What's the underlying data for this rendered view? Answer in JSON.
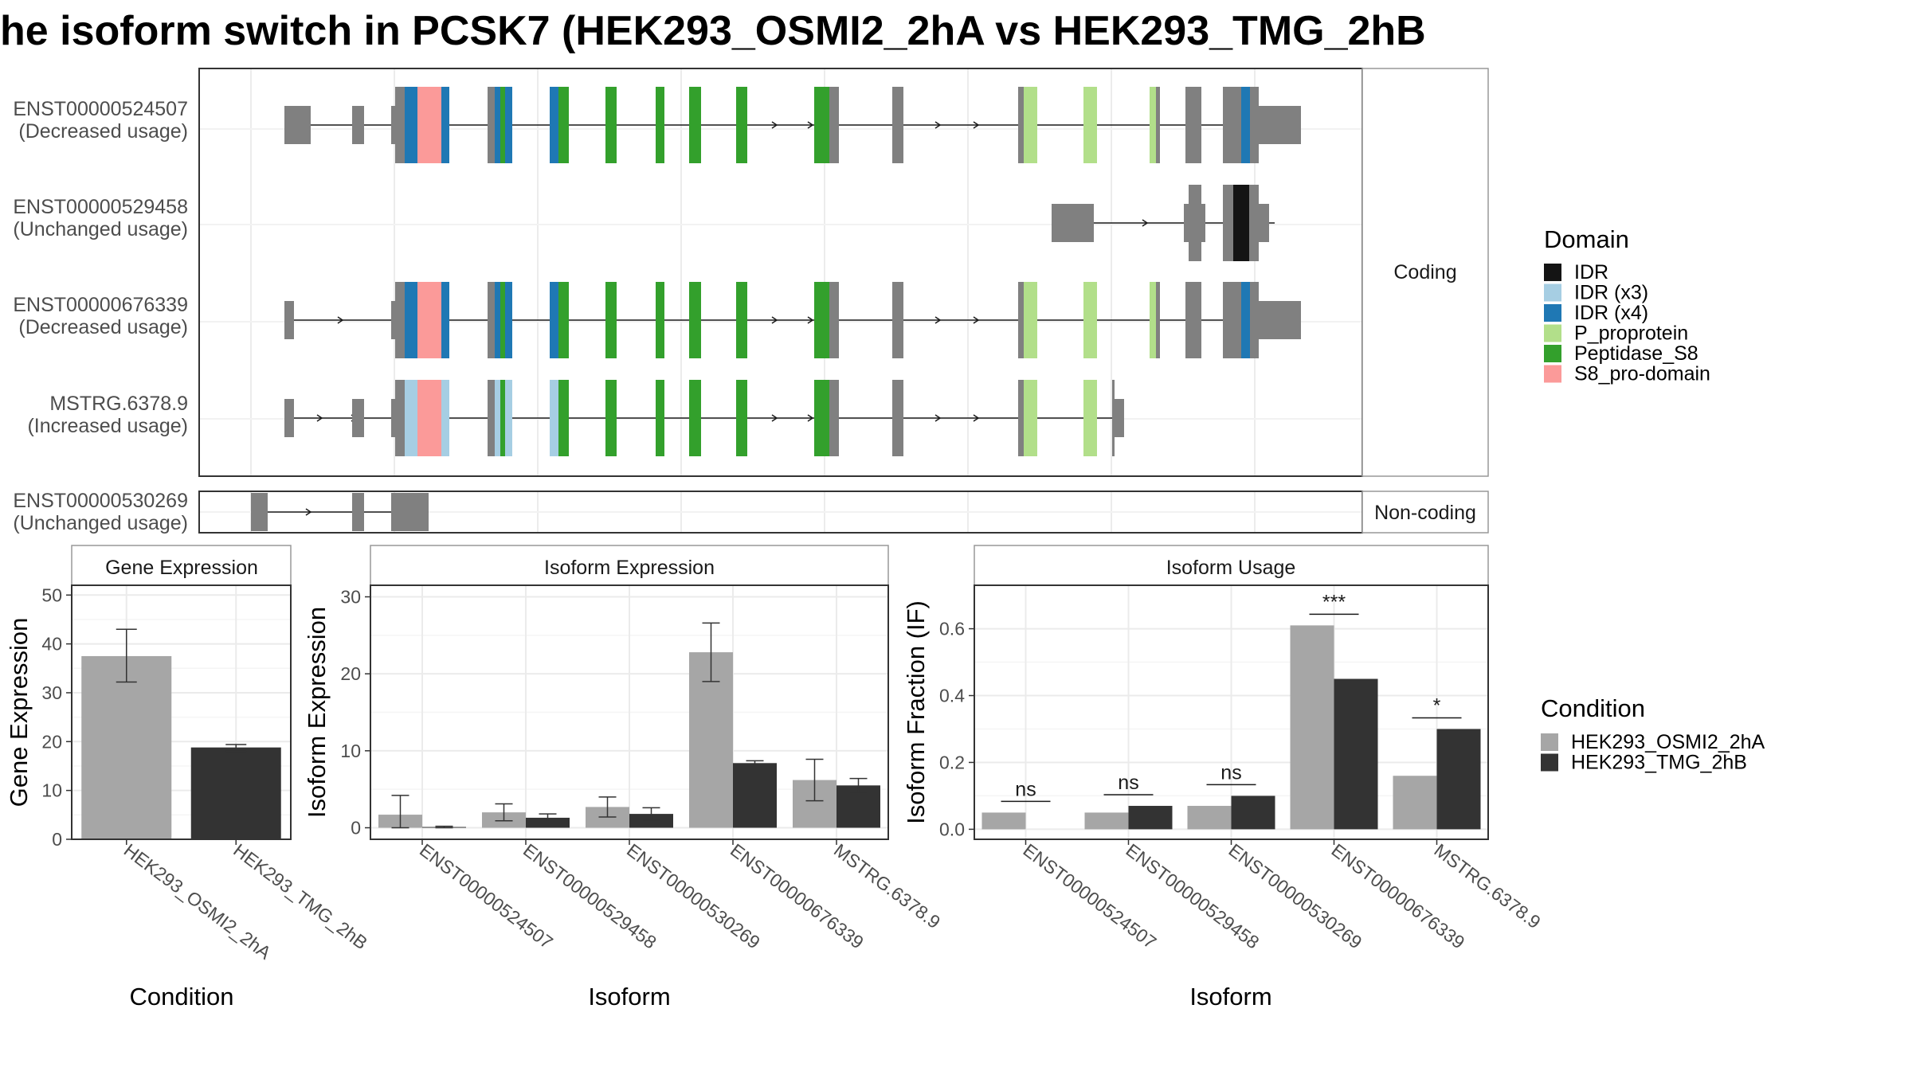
{
  "title": "he isoform switch in PCSK7 (HEK293_OSMI2_2hA vs HEK293_TMG_2hB",
  "colors": {
    "IDR": "#141414",
    "IDR (x3)": "#a6cee3",
    "IDR (x4)": "#1f78b4",
    "P_proprotein": "#b2df8a",
    "Peptidase_S8": "#33a02c",
    "S8_pro-domain": "#fb9a99",
    "exon": "#808080",
    "cond_a": "#a6a6a6",
    "cond_b": "#333333"
  },
  "structure": {
    "coding_label": "Coding",
    "noncoding_label": "Non-coding",
    "coding_isoforms": [
      {
        "id": "ENST00000524507",
        "status": "(Decreased usage)"
      },
      {
        "id": "ENST00000529458",
        "status": "(Unchanged usage)"
      },
      {
        "id": "ENST00000676339",
        "status": "(Decreased usage)"
      },
      {
        "id": "MSTRG.6378.9",
        "status": "(Increased usage)"
      }
    ],
    "noncoding_isoforms": [
      {
        "id": "ENST00000530269",
        "status": "(Unchanged usage)"
      }
    ]
  },
  "legend_domain": {
    "title": "Domain",
    "items": [
      "IDR",
      "IDR (x3)",
      "IDR (x4)",
      "P_proprotein",
      "Peptidase_S8",
      "S8_pro-domain"
    ]
  },
  "legend_condition": {
    "title": "Condition",
    "items": [
      "HEK293_OSMI2_2hA",
      "HEK293_TMG_2hB"
    ]
  },
  "chart_data": [
    {
      "type": "bar",
      "title": "Gene Expression",
      "xlabel": "Condition",
      "ylabel": "Gene Expression",
      "ylim": [
        0,
        52
      ],
      "yticks": [
        0,
        10,
        20,
        30,
        40,
        50
      ],
      "categories": [
        "HEK293_OSMI2_2hA",
        "HEK293_TMG_2hB"
      ],
      "values": [
        37.5,
        18.8
      ],
      "errors": [
        [
          32.2,
          43.0
        ],
        [
          18.0,
          19.4
        ]
      ]
    },
    {
      "type": "bar",
      "title": "Isoform Expression",
      "xlabel": "Isoform",
      "ylabel": "Isoform Expression",
      "ylim": [
        -1.5,
        31.5
      ],
      "yticks": [
        0,
        10,
        20,
        30
      ],
      "categories": [
        "ENST00000524507",
        "ENST00000529458",
        "ENST00000530269",
        "ENST00000676339",
        "MSTRG.6378.9"
      ],
      "series": [
        {
          "name": "HEK293_OSMI2_2hA",
          "values": [
            1.7,
            2.0,
            2.7,
            22.8,
            6.2
          ],
          "errors": [
            [
              0.0,
              4.2
            ],
            [
              0.9,
              3.1
            ],
            [
              1.4,
              4.0
            ],
            [
              19.0,
              26.6
            ],
            [
              3.5,
              8.9
            ]
          ]
        },
        {
          "name": "HEK293_TMG_2hB",
          "values": [
            0.1,
            1.3,
            1.8,
            8.4,
            5.5
          ],
          "errors": [
            [
              0.0,
              0.2
            ],
            [
              0.8,
              1.8
            ],
            [
              1.0,
              2.6
            ],
            [
              8.1,
              8.7
            ],
            [
              4.6,
              6.4
            ]
          ]
        }
      ]
    },
    {
      "type": "bar",
      "title": "Isoform Usage",
      "xlabel": "Isoform",
      "ylabel": "Isoform Fraction (IF)",
      "ylim": [
        -0.03,
        0.73
      ],
      "yticks": [
        "0.0",
        "0.2",
        "0.4",
        "0.6"
      ],
      "categories": [
        "ENST00000524507",
        "ENST00000529458",
        "ENST00000530269",
        "ENST00000676339",
        "MSTRG.6378.9"
      ],
      "series": [
        {
          "name": "HEK293_OSMI2_2hA",
          "values": [
            0.05,
            0.05,
            0.07,
            0.61,
            0.16
          ]
        },
        {
          "name": "HEK293_TMG_2hB",
          "values": [
            0.0,
            0.07,
            0.1,
            0.45,
            0.3
          ]
        }
      ],
      "annotations": [
        "ns",
        "ns",
        "ns",
        "***",
        "*"
      ]
    }
  ]
}
